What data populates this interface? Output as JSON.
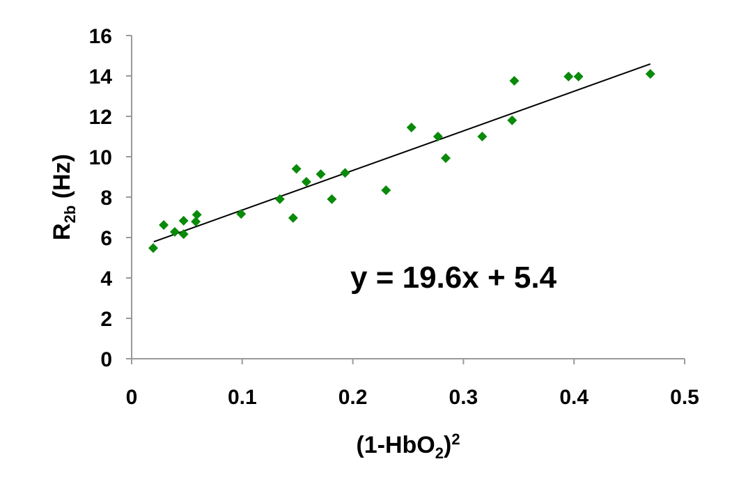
{
  "chart_data": {
    "type": "scatter",
    "title": "",
    "xlabel": "(1-HbO2)2",
    "xlabel_parts": {
      "main": "(1-HbO",
      "sub": "2",
      "close": ")",
      "sup": "2"
    },
    "ylabel": "R2b (Hz)",
    "ylabel_parts": {
      "main": "R",
      "sub": "2b",
      "rest": " (Hz)"
    },
    "xlim": [
      0,
      0.5
    ],
    "ylim": [
      0,
      16
    ],
    "xticks": [
      "0",
      "0.1",
      "0.2",
      "0.3",
      "0.4",
      "0.5"
    ],
    "xtick_values": [
      0,
      0.1,
      0.2,
      0.3,
      0.4,
      0.5
    ],
    "yticks": [
      "0",
      "2",
      "4",
      "6",
      "8",
      "10",
      "12",
      "14",
      "16"
    ],
    "ytick_values": [
      0,
      2,
      4,
      6,
      8,
      10,
      12,
      14,
      16
    ],
    "grid": false,
    "marker_color": "#0a8a0a",
    "series": [
      {
        "name": "R2b",
        "points": [
          [
            0.0195,
            5.48
          ],
          [
            0.029,
            6.62
          ],
          [
            0.039,
            6.28
          ],
          [
            0.047,
            6.17
          ],
          [
            0.047,
            6.83
          ],
          [
            0.058,
            6.79
          ],
          [
            0.059,
            7.13
          ],
          [
            0.099,
            7.17
          ],
          [
            0.134,
            7.9
          ],
          [
            0.146,
            6.97
          ],
          [
            0.149,
            9.4
          ],
          [
            0.158,
            8.76
          ],
          [
            0.171,
            9.14
          ],
          [
            0.181,
            7.9
          ],
          [
            0.193,
            9.2
          ],
          [
            0.23,
            8.34
          ],
          [
            0.253,
            11.45
          ],
          [
            0.277,
            11.0
          ],
          [
            0.284,
            9.93
          ],
          [
            0.317,
            11.0
          ],
          [
            0.344,
            11.8
          ],
          [
            0.346,
            13.76
          ],
          [
            0.395,
            13.97
          ],
          [
            0.404,
            13.97
          ],
          [
            0.469,
            14.1
          ]
        ]
      }
    ],
    "trendline": {
      "slope": 19.6,
      "intercept": 5.4,
      "x_range": [
        0.02,
        0.469
      ],
      "color": "#000000"
    },
    "annotation": "y = 19.6x + 5.4"
  }
}
